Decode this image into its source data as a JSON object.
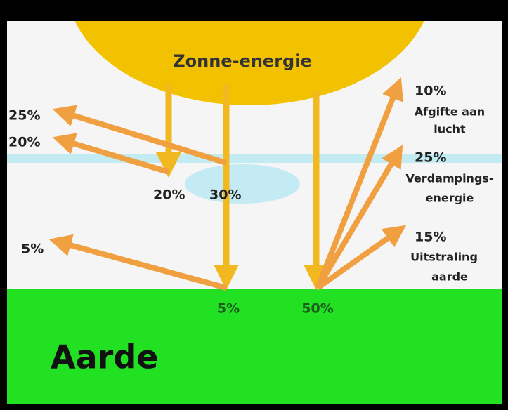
{
  "title": "Zonne-energie",
  "left_labels": [
    "25%",
    "20%",
    "5%"
  ],
  "cloud_labels": [
    "20%",
    "30%"
  ],
  "ground_labels": [
    "5%",
    "50%"
  ],
  "right_labels": [
    {
      "value": "10%",
      "text": [
        "Afgifte aan",
        "lucht"
      ]
    },
    {
      "value": "25%",
      "text": [
        "Verdampings-",
        "energie"
      ]
    },
    {
      "value": "15%",
      "text": [
        "Uitstraling",
        "aarde"
      ]
    }
  ],
  "ground": "Aarde"
}
